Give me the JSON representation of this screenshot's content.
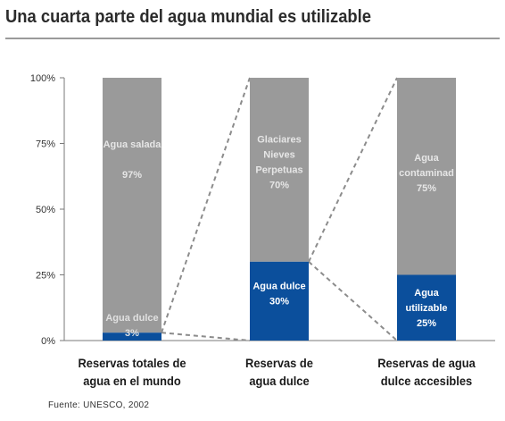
{
  "title": "Una cuarta parte del agua mundial es utilizable",
  "source": "Fuente: UNESCO, 2002",
  "colors": {
    "top": "#9a9a9a",
    "bottom": "#0b4f9c",
    "label": "#e6e6e6",
    "connector": "#8c8c8c",
    "axis": "#7a7a7a"
  },
  "chart_data": {
    "type": "bar",
    "stacked": true,
    "percent": true,
    "yticks": [
      "0%",
      "25%",
      "50%",
      "75%",
      "100%"
    ],
    "ylim": [
      0,
      100
    ],
    "categories": [
      [
        "Reservas totales de",
        "agua en el mundo"
      ],
      [
        "Reservas de",
        "agua dulce"
      ],
      [
        "Reservas de agua",
        "dulce accesibles"
      ]
    ],
    "bars": [
      {
        "top": {
          "value": 97,
          "label": [
            "Agua salada",
            "",
            "97%"
          ]
        },
        "bottom": {
          "value": 3,
          "label": [
            "Agua dulce",
            "3%"
          ]
        }
      },
      {
        "top": {
          "value": 70,
          "label": [
            "Glaciares",
            "Nieves",
            "Perpetuas",
            "70%"
          ]
        },
        "bottom": {
          "value": 30,
          "label": [
            "Agua dulce",
            "30%"
          ]
        }
      },
      {
        "top": {
          "value": 75,
          "label": [
            "Agua",
            "contaminad",
            "75%"
          ]
        },
        "bottom": {
          "value": 25,
          "label": [
            "Agua",
            "utilizable",
            "25%"
          ]
        }
      }
    ]
  }
}
